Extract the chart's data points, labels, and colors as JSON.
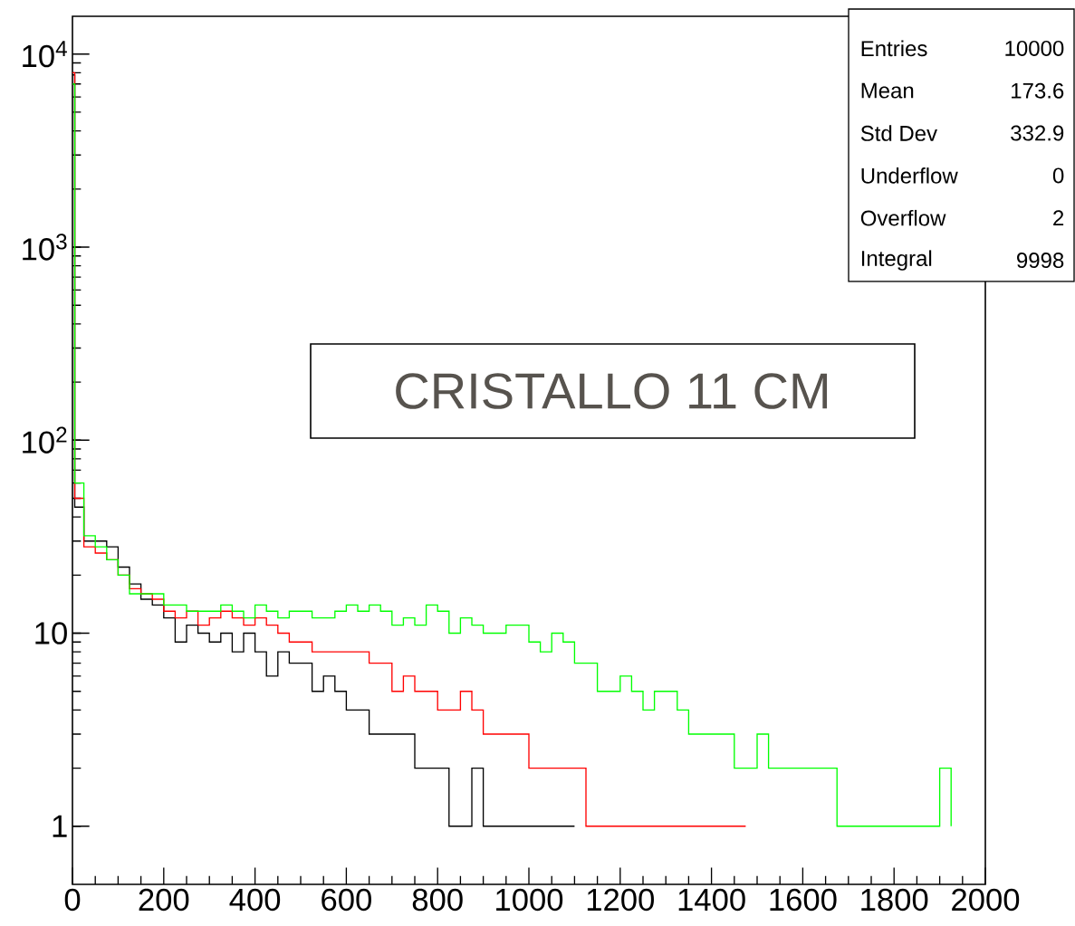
{
  "chart_data": {
    "type": "step",
    "log": "y",
    "xlim": [
      0,
      2000
    ],
    "ylim": [
      0.5,
      15700
    ],
    "xticks": [
      0,
      200,
      400,
      600,
      800,
      1000,
      1200,
      1400,
      1600,
      1800,
      2000
    ],
    "yticks": [
      {
        "value": 1,
        "label": "1"
      },
      {
        "value": 10,
        "label": "10"
      },
      {
        "value": 100,
        "label": "10$^{2}$"
      },
      {
        "value": 1000,
        "label": "10$^{3}$"
      },
      {
        "value": 10000,
        "label": "10$^{4}$"
      }
    ],
    "x": [
      0,
      5,
      25,
      50,
      75,
      100,
      125,
      150,
      175,
      200,
      225,
      250,
      275,
      300,
      325,
      350,
      375,
      400,
      425,
      450,
      475,
      500,
      525,
      550,
      575,
      600,
      625,
      650,
      675,
      700,
      725,
      750,
      775,
      800,
      825,
      850,
      875,
      900,
      925,
      950,
      975,
      1000,
      1025,
      1050,
      1075,
      1100,
      1125,
      1150,
      1175,
      1200,
      1225,
      1250,
      1275,
      1300,
      1325,
      1350,
      1375,
      1400,
      1425,
      1450,
      1475,
      1500,
      1525,
      1550,
      1575,
      1600,
      1625,
      1650,
      1675,
      1700,
      1725,
      1750,
      1775,
      1800,
      1825,
      1850,
      1875,
      1900,
      1925
    ],
    "series": [
      {
        "color": "#000000",
        "values": [
          7800,
          45,
          30,
          30,
          28,
          22,
          18,
          15,
          14,
          12,
          9,
          11,
          10,
          9,
          10,
          8,
          10,
          8,
          6,
          8,
          7,
          7,
          5,
          6,
          5,
          4,
          4,
          3,
          3,
          3,
          3,
          2,
          2,
          2,
          1,
          1,
          2,
          1,
          1,
          1,
          1,
          1,
          1,
          1,
          1,
          1,
          null,
          null,
          null,
          null,
          null,
          null,
          null,
          null,
          null,
          null,
          null,
          null,
          null,
          null,
          null,
          null,
          null,
          null,
          null,
          null,
          null,
          null,
          null,
          null,
          null,
          null,
          null,
          null,
          null,
          null,
          null,
          null,
          null
        ]
      },
      {
        "color": "#ff0000",
        "values": [
          8000,
          50,
          28,
          26,
          24,
          20,
          17,
          16,
          15,
          13,
          12,
          13,
          11,
          12,
          13,
          12,
          11,
          12,
          11,
          10,
          9,
          9,
          8,
          8,
          8,
          8,
          8,
          7,
          7,
          5,
          6,
          5,
          5,
          4,
          4,
          5,
          4,
          3,
          3,
          3,
          3,
          2,
          2,
          2,
          2,
          2,
          1,
          1,
          1,
          1,
          1,
          1,
          1,
          1,
          1,
          1,
          1,
          1,
          1,
          1,
          1,
          null,
          null,
          null,
          null,
          null,
          null,
          null,
          null,
          null,
          null,
          null,
          null,
          null,
          null,
          null,
          null,
          null,
          null
        ]
      },
      {
        "color": "#00ff00",
        "values": [
          7000,
          60,
          32,
          28,
          24,
          20,
          16,
          16,
          16,
          14,
          14,
          13,
          13,
          13,
          14,
          13,
          12,
          14,
          13,
          12,
          13,
          13,
          12,
          12,
          13,
          14,
          13,
          14,
          13,
          11,
          12,
          11,
          14,
          13,
          10,
          12,
          11,
          10,
          10,
          11,
          11,
          9,
          8,
          10,
          9,
          7,
          7,
          5,
          5,
          6,
          5,
          4,
          5,
          5,
          4,
          3,
          3,
          3,
          3,
          2,
          2,
          3,
          2,
          2,
          2,
          2,
          2,
          2,
          1,
          1,
          1,
          1,
          1,
          1,
          1,
          1,
          1,
          2,
          1
        ]
      }
    ],
    "annotations": [
      "CRISTALLO 11 CM",
      "Entries",
      "10000",
      "Mean",
      "173.6",
      "Std Dev",
      "332.9",
      "Underflow",
      "0",
      "Overflow",
      "2",
      "Integral",
      "9998"
    ]
  }
}
